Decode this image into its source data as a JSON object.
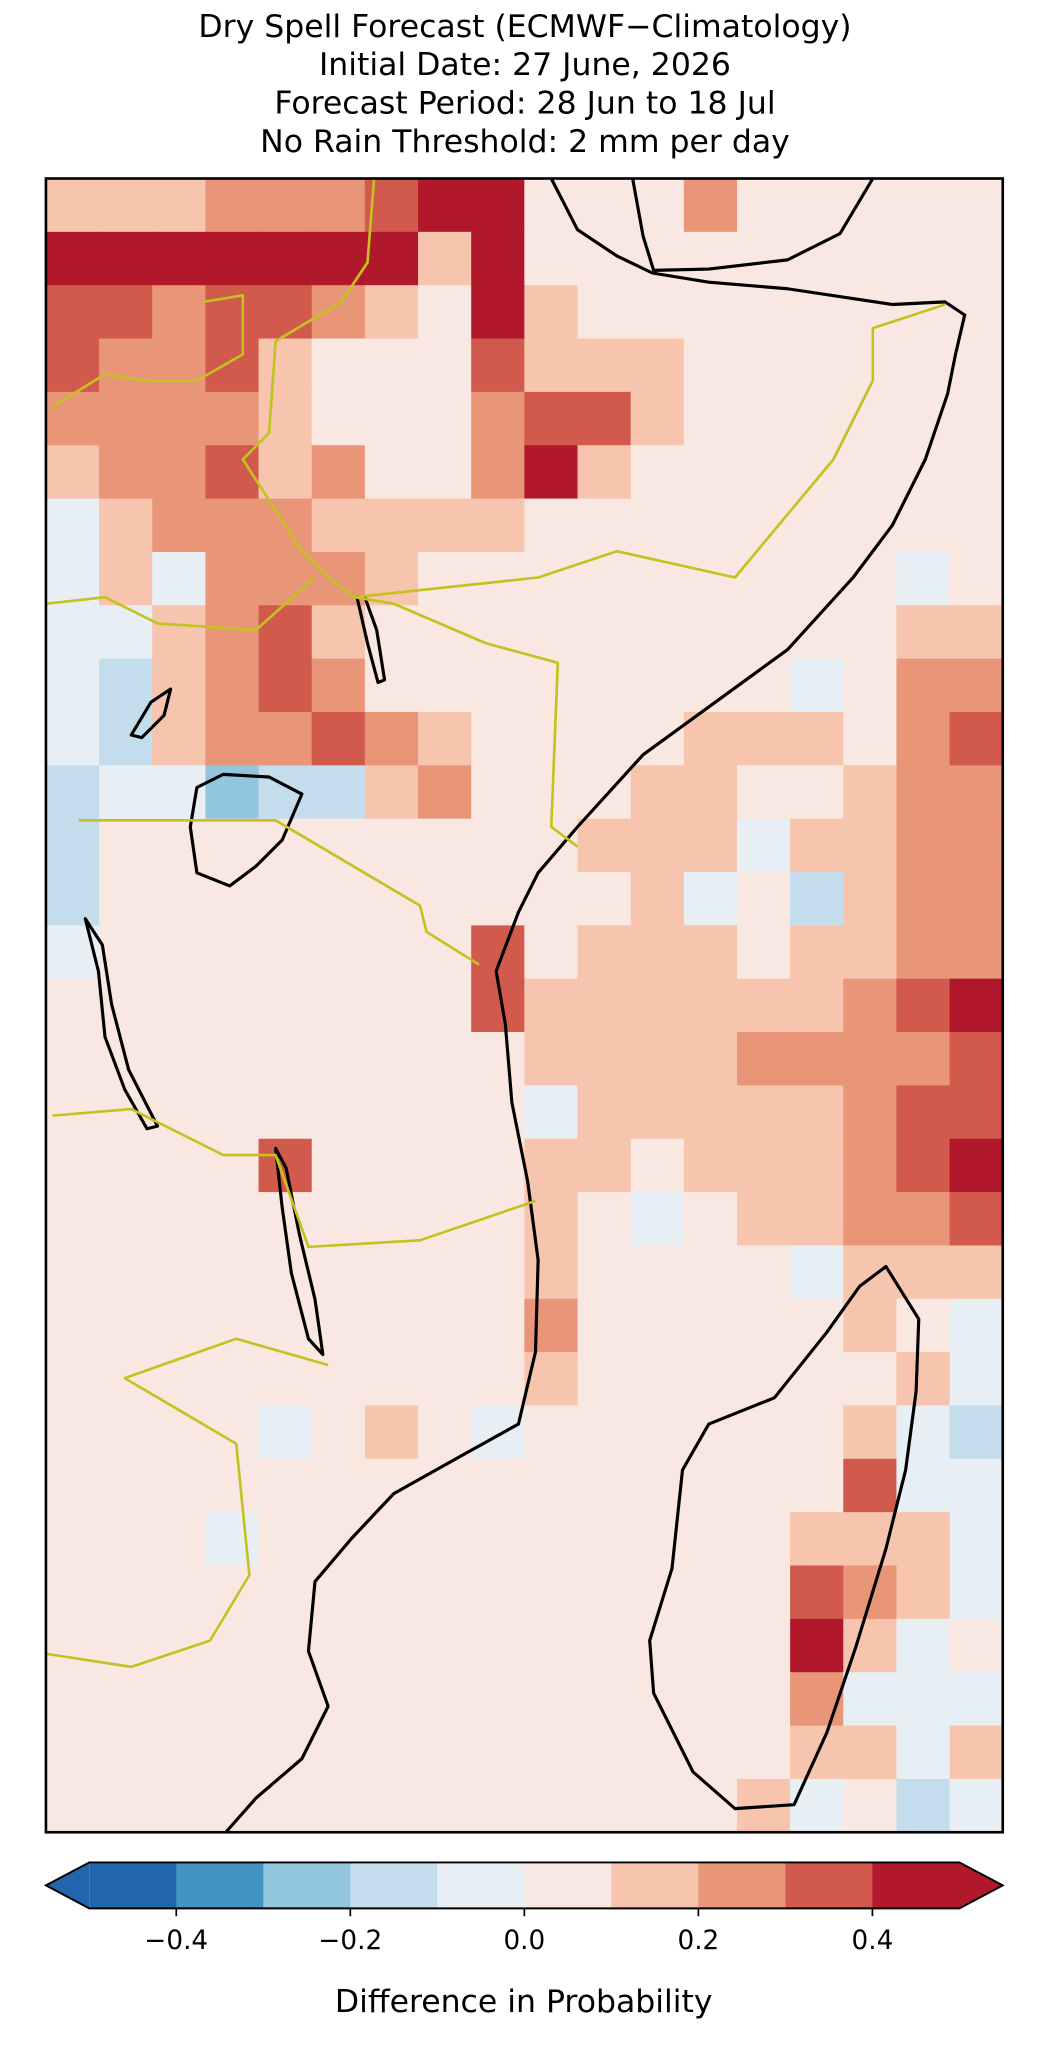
{
  "chart_data": {
    "type": "grid",
    "title_lines": [
      "Dry Spell Forecast (ECMWF−Climatology)",
      "Initial Date: 27 June, 2026",
      "Forecast Period: 28 Jun to 18 Jul",
      "No Rain Threshold: 2 mm per day"
    ],
    "grid": [
      [
        0.15,
        0.15,
        0.15,
        0.25,
        0.25,
        0.25,
        0.35,
        0.45,
        0.45,
        0.05,
        0.05,
        0.05,
        0.25,
        0.05,
        0.05,
        0.05,
        0.05,
        0.05
      ],
      [
        0.45,
        0.45,
        0.45,
        0.45,
        0.45,
        0.45,
        0.45,
        0.15,
        0.45,
        0.05,
        0.05,
        0.05,
        0.05,
        0.05,
        0.05,
        0.05,
        0.05,
        0.05
      ],
      [
        0.35,
        0.35,
        0.25,
        0.35,
        0.35,
        0.25,
        0.15,
        0.05,
        0.45,
        0.15,
        0.05,
        0.05,
        0.05,
        0.05,
        0.05,
        0.05,
        0.05,
        0.05
      ],
      [
        0.35,
        0.25,
        0.25,
        0.35,
        0.15,
        0.05,
        0.05,
        0.05,
        0.35,
        0.15,
        0.15,
        0.15,
        0.05,
        0.05,
        0.05,
        0.05,
        0.05,
        0.05
      ],
      [
        0.25,
        0.25,
        0.25,
        0.25,
        0.15,
        0.05,
        0.05,
        0.05,
        0.25,
        0.35,
        0.35,
        0.15,
        0.05,
        0.05,
        0.05,
        0.05,
        0.05,
        0.05
      ],
      [
        0.15,
        0.25,
        0.25,
        0.35,
        0.15,
        0.25,
        0.05,
        0.05,
        0.25,
        0.45,
        0.15,
        0.05,
        0.05,
        0.05,
        0.05,
        0.05,
        0.05,
        0.05
      ],
      [
        -0.05,
        0.15,
        0.25,
        0.25,
        0.25,
        0.15,
        0.15,
        0.15,
        0.15,
        0.05,
        0.05,
        0.05,
        0.05,
        0.05,
        0.05,
        0.05,
        0.05,
        0.05
      ],
      [
        -0.05,
        0.15,
        -0.05,
        0.25,
        0.25,
        0.25,
        0.15,
        0.05,
        0.05,
        0.05,
        0.05,
        0.05,
        0.05,
        0.05,
        0.05,
        0.05,
        -0.05,
        0.05
      ],
      [
        -0.05,
        -0.05,
        0.15,
        0.25,
        0.35,
        0.15,
        0.05,
        0.05,
        0.05,
        0.05,
        0.05,
        0.05,
        0.05,
        0.05,
        0.05,
        0.05,
        0.15,
        0.15
      ],
      [
        -0.05,
        -0.15,
        0.15,
        0.25,
        0.35,
        0.25,
        0.05,
        0.05,
        0.05,
        0.05,
        0.05,
        0.05,
        0.05,
        0.05,
        -0.05,
        0.05,
        0.25,
        0.25
      ],
      [
        -0.05,
        -0.15,
        0.15,
        0.25,
        0.25,
        0.35,
        0.25,
        0.15,
        0.05,
        0.05,
        0.05,
        0.05,
        0.15,
        0.15,
        0.15,
        0.05,
        0.25,
        0.35
      ],
      [
        -0.15,
        -0.05,
        -0.05,
        -0.25,
        -0.15,
        -0.15,
        0.15,
        0.25,
        0.05,
        0.05,
        0.05,
        0.15,
        0.15,
        0.05,
        0.05,
        0.15,
        0.25,
        0.25
      ],
      [
        -0.15,
        0.05,
        0.05,
        0.05,
        0.05,
        0.05,
        0.05,
        0.05,
        0.05,
        0.05,
        0.15,
        0.15,
        0.15,
        -0.05,
        0.15,
        0.15,
        0.25,
        0.25
      ],
      [
        -0.15,
        0.05,
        0.05,
        0.05,
        0.05,
        0.05,
        0.05,
        0.05,
        0.05,
        0.05,
        0.05,
        0.15,
        -0.05,
        0.05,
        -0.15,
        0.15,
        0.25,
        0.25
      ],
      [
        -0.05,
        0.05,
        0.05,
        0.05,
        0.05,
        0.05,
        0.05,
        0.05,
        0.35,
        0.05,
        0.15,
        0.15,
        0.15,
        0.05,
        0.15,
        0.15,
        0.25,
        0.25
      ],
      [
        0.05,
        0.05,
        0.05,
        0.05,
        0.05,
        0.05,
        0.05,
        0.05,
        0.35,
        0.15,
        0.15,
        0.15,
        0.15,
        0.15,
        0.15,
        0.25,
        0.35,
        0.45
      ],
      [
        0.05,
        0.05,
        0.05,
        0.05,
        0.05,
        0.05,
        0.05,
        0.05,
        0.05,
        0.15,
        0.15,
        0.15,
        0.15,
        0.25,
        0.25,
        0.25,
        0.25,
        0.35
      ],
      [
        0.05,
        0.05,
        0.05,
        0.05,
        0.05,
        0.05,
        0.05,
        0.05,
        0.05,
        -0.05,
        0.15,
        0.15,
        0.15,
        0.15,
        0.15,
        0.25,
        0.35,
        0.35
      ],
      [
        0.05,
        0.05,
        0.05,
        0.05,
        0.35,
        0.05,
        0.05,
        0.05,
        0.05,
        0.15,
        0.15,
        0.05,
        0.15,
        0.15,
        0.15,
        0.25,
        0.35,
        0.45
      ],
      [
        0.05,
        0.05,
        0.05,
        0.05,
        0.05,
        0.05,
        0.05,
        0.05,
        0.05,
        0.15,
        0.05,
        -0.05,
        0.05,
        0.15,
        0.15,
        0.25,
        0.25,
        0.35
      ],
      [
        0.05,
        0.05,
        0.05,
        0.05,
        0.05,
        0.05,
        0.05,
        0.05,
        0.05,
        0.15,
        0.05,
        0.05,
        0.05,
        0.05,
        -0.05,
        0.15,
        0.15,
        0.15
      ],
      [
        0.05,
        0.05,
        0.05,
        0.05,
        0.05,
        0.05,
        0.05,
        0.05,
        0.05,
        0.25,
        0.05,
        0.05,
        0.05,
        0.05,
        0.05,
        0.15,
        0.05,
        -0.05
      ],
      [
        0.05,
        0.05,
        0.05,
        0.05,
        0.05,
        0.05,
        0.05,
        0.05,
        0.05,
        0.15,
        0.05,
        0.05,
        0.05,
        0.05,
        0.05,
        0.05,
        0.15,
        -0.05
      ],
      [
        0.05,
        0.05,
        0.05,
        0.05,
        -0.05,
        0.05,
        0.15,
        0.05,
        -0.05,
        0.05,
        0.05,
        0.05,
        0.05,
        0.05,
        0.05,
        0.15,
        -0.05,
        -0.15
      ],
      [
        0.05,
        0.05,
        0.05,
        0.05,
        0.05,
        0.05,
        0.05,
        0.05,
        0.05,
        0.05,
        0.05,
        0.05,
        0.05,
        0.05,
        0.05,
        0.35,
        -0.05,
        -0.05
      ],
      [
        0.05,
        0.05,
        0.05,
        -0.05,
        0.05,
        0.05,
        0.05,
        0.05,
        0.05,
        0.05,
        0.05,
        0.05,
        0.05,
        0.05,
        0.15,
        0.15,
        0.15,
        -0.05
      ],
      [
        0.05,
        0.05,
        0.05,
        0.05,
        0.05,
        0.05,
        0.05,
        0.05,
        0.05,
        0.05,
        0.05,
        0.05,
        0.05,
        0.05,
        0.35,
        0.25,
        0.15,
        -0.05
      ],
      [
        0.05,
        0.05,
        0.05,
        0.05,
        0.05,
        0.05,
        0.05,
        0.05,
        0.05,
        0.05,
        0.05,
        0.05,
        0.05,
        0.05,
        0.45,
        0.15,
        -0.05,
        0.05
      ],
      [
        0.05,
        0.05,
        0.05,
        0.05,
        0.05,
        0.05,
        0.05,
        0.05,
        0.05,
        0.05,
        0.05,
        0.05,
        0.05,
        0.05,
        0.25,
        -0.05,
        -0.05,
        -0.05
      ],
      [
        0.05,
        0.05,
        0.05,
        0.05,
        0.05,
        0.05,
        0.05,
        0.05,
        0.05,
        0.05,
        0.05,
        0.05,
        0.05,
        0.05,
        0.15,
        0.15,
        -0.05,
        0.15
      ],
      [
        0.05,
        0.05,
        0.05,
        0.05,
        0.05,
        0.05,
        0.05,
        0.05,
        0.05,
        0.05,
        0.05,
        0.05,
        0.05,
        0.15,
        -0.05,
        0.05,
        -0.15,
        -0.05
      ]
    ],
    "colorbar": {
      "bounds": [
        -0.5,
        -0.4,
        -0.3,
        -0.2,
        -0.1,
        0,
        0.1,
        0.2,
        0.3,
        0.4,
        0.5
      ],
      "colors": [
        "#2166ac",
        "#4393c3",
        "#92c5de",
        "#c4dded",
        "#e7eff5",
        "#f9e8e1",
        "#f7c4ad",
        "#e99577",
        "#d15a4d",
        "#b2182b"
      ],
      "ticks": [
        {
          "value": -0.4,
          "label": "−0.4"
        },
        {
          "value": -0.2,
          "label": "−0.2"
        },
        {
          "value": 0,
          "label": "0.0"
        },
        0.2,
        0.4
      ],
      "label": "Difference in Probability",
      "extend": "both"
    }
  }
}
